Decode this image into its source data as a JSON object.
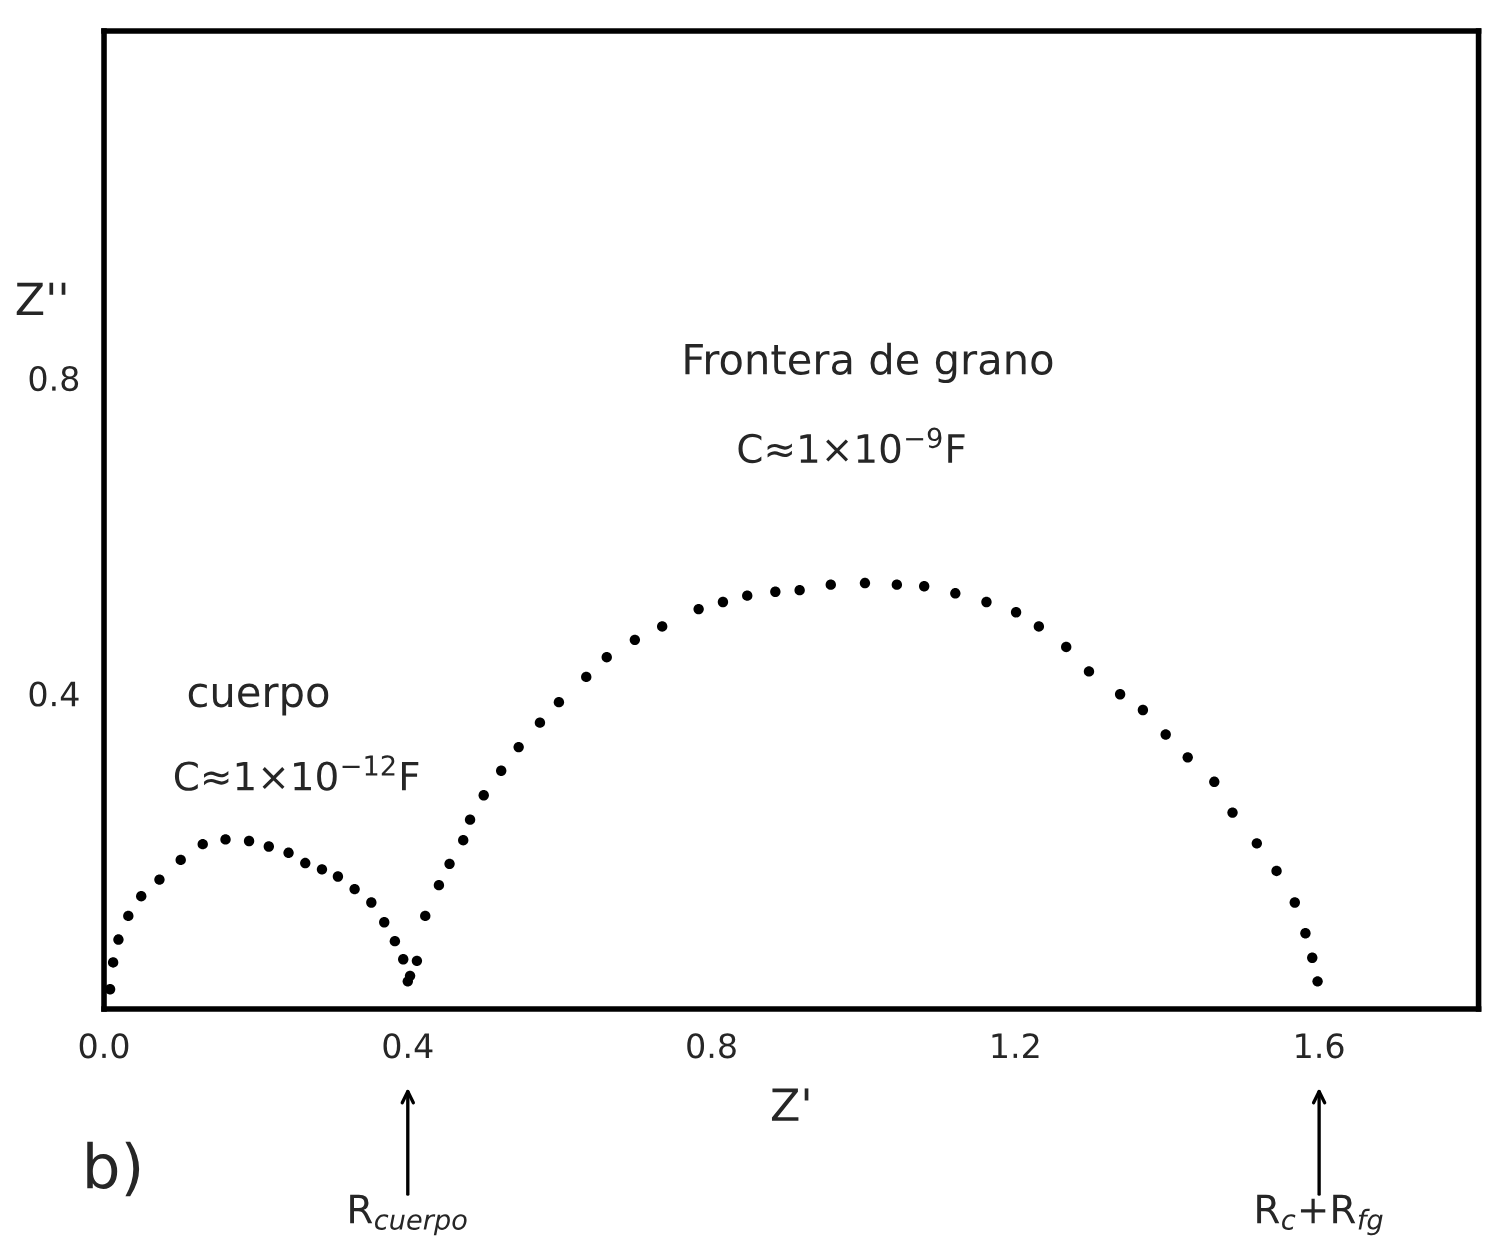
{
  "chart_data": {
    "type": "scatter",
    "xlabel": "Z'",
    "ylabel": "Z''",
    "xlim": [
      0,
      1.81
    ],
    "ylim": [
      0,
      1.24
    ],
    "xticks": [
      {
        "value": 0,
        "label": "0.0"
      },
      {
        "value": 0.4,
        "label": "0.4"
      },
      {
        "value": 0.8,
        "label": "0.8"
      },
      {
        "value": 1.2,
        "label": "1.2"
      },
      {
        "value": 1.6,
        "label": "1.6"
      }
    ],
    "yticks": [
      0.4,
      0.8
    ],
    "grid": false,
    "marker": "circle",
    "series": [
      {
        "color": "#000000",
        "x": [
          0.008,
          0.012,
          0.019,
          0.032,
          0.049,
          0.073,
          0.101,
          0.13,
          0.16,
          0.191,
          0.217,
          0.243,
          0.265,
          0.287,
          0.308,
          0.33,
          0.352,
          0.369,
          0.383,
          0.394,
          0.403
        ],
        "values": [
          0.025,
          0.059,
          0.088,
          0.118,
          0.143,
          0.164,
          0.189,
          0.209,
          0.215,
          0.213,
          0.206,
          0.198,
          0.185,
          0.177,
          0.168,
          0.152,
          0.135,
          0.11,
          0.086,
          0.063,
          0.042
        ]
      },
      {
        "color": "#000000",
        "x": [
          0.4,
          0.412,
          0.423,
          0.441,
          0.455,
          0.473,
          0.482,
          0.5,
          0.523,
          0.546,
          0.574,
          0.599,
          0.635,
          0.662,
          0.699,
          0.735,
          0.783,
          0.815,
          0.847,
          0.884,
          0.916,
          0.957,
          1.002,
          1.044,
          1.08,
          1.121,
          1.162,
          1.201,
          1.231,
          1.267,
          1.297,
          1.338,
          1.368,
          1.398,
          1.427,
          1.462,
          1.486,
          1.518,
          1.544,
          1.568,
          1.582,
          1.591,
          1.598
        ],
        "values": [
          0.035,
          0.061,
          0.118,
          0.157,
          0.184,
          0.214,
          0.24,
          0.271,
          0.302,
          0.332,
          0.363,
          0.389,
          0.421,
          0.446,
          0.468,
          0.485,
          0.507,
          0.516,
          0.524,
          0.529,
          0.531,
          0.538,
          0.54,
          0.538,
          0.536,
          0.527,
          0.516,
          0.503,
          0.485,
          0.459,
          0.428,
          0.399,
          0.379,
          0.348,
          0.319,
          0.288,
          0.249,
          0.21,
          0.175,
          0.135,
          0.096,
          0.065,
          0.035
        ]
      }
    ],
    "annotations": [
      "cuerpo",
      "C≈1×10$^{−12}$F",
      "Frontera de grano",
      "C≈1×10$^{−9}$F",
      "R$_{cuerpo}$",
      "R$_{c}$+R$_{fg}$",
      "b)"
    ]
  }
}
